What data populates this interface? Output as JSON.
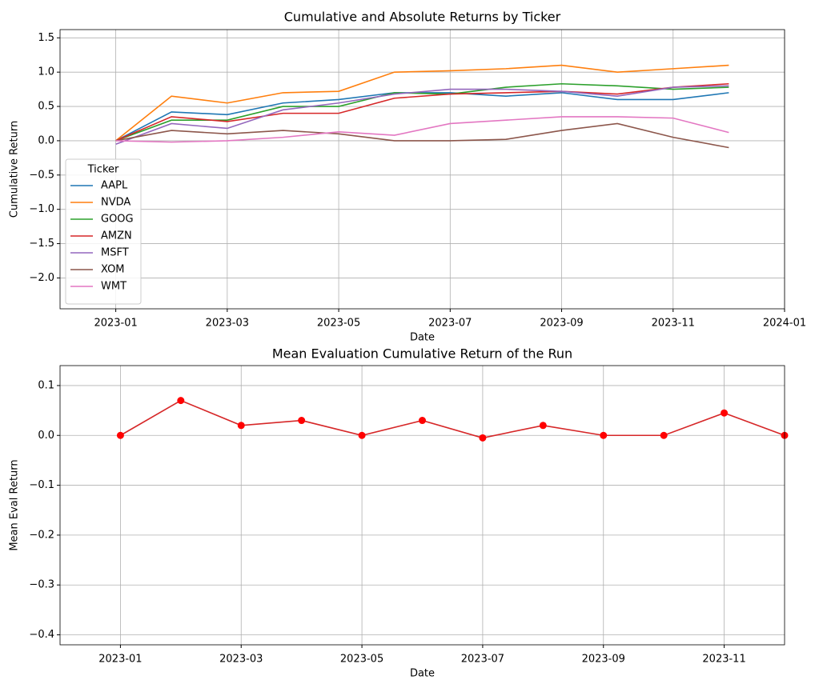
{
  "chart_data": [
    {
      "type": "line",
      "title": "Cumulative and Absolute Returns by Ticker",
      "xlabel": "Date",
      "ylabel": "Cumulative Return",
      "x": [
        "2023-01",
        "2023-02",
        "2023-03",
        "2023-04",
        "2023-05",
        "2023-06",
        "2023-07",
        "2023-08",
        "2023-09",
        "2023-10",
        "2023-11",
        "2023-12"
      ],
      "series": [
        {
          "name": "AAPL",
          "color": "#1f77b4",
          "values": [
            0.0,
            0.42,
            0.38,
            0.55,
            0.6,
            0.7,
            0.7,
            0.65,
            0.7,
            0.6,
            0.6,
            0.7
          ]
        },
        {
          "name": "NVDA",
          "color": "#ff7f0e",
          "values": [
            0.0,
            0.65,
            0.55,
            0.7,
            0.72,
            1.0,
            1.02,
            1.05,
            1.1,
            1.0,
            1.05,
            1.1
          ]
        },
        {
          "name": "GOOG",
          "color": "#2ca02c",
          "values": [
            0.0,
            0.3,
            0.3,
            0.5,
            0.5,
            0.7,
            0.68,
            0.78,
            0.83,
            0.8,
            0.75,
            0.78
          ]
        },
        {
          "name": "AMZN",
          "color": "#d62728",
          "values": [
            0.0,
            0.35,
            0.28,
            0.4,
            0.4,
            0.62,
            0.68,
            0.7,
            0.72,
            0.68,
            0.78,
            0.83
          ]
        },
        {
          "name": "MSFT",
          "color": "#9467bd",
          "values": [
            -0.05,
            0.25,
            0.18,
            0.45,
            0.55,
            0.68,
            0.75,
            0.75,
            0.72,
            0.65,
            0.78,
            0.8
          ]
        },
        {
          "name": "XOM",
          "color": "#8c564b",
          "values": [
            0.0,
            0.15,
            0.1,
            0.15,
            0.1,
            0.0,
            0.0,
            0.02,
            0.15,
            0.25,
            0.05,
            -0.1
          ]
        },
        {
          "name": "WMT",
          "color": "#e377c2",
          "values": [
            0.0,
            -0.02,
            0.0,
            0.05,
            0.13,
            0.08,
            0.25,
            0.3,
            0.35,
            0.35,
            0.33,
            0.12
          ]
        }
      ],
      "legend_title": "Ticker",
      "legend": "lower left",
      "grid": true,
      "xlim": [
        "2022-12",
        "2024-01"
      ],
      "xticks": [
        "2023-01",
        "2023-03",
        "2023-05",
        "2023-07",
        "2023-09",
        "2023-11",
        "2024-01"
      ],
      "ylim": [
        -2.45,
        1.62
      ],
      "yticks": [
        {
          "value": -2.0,
          "label": "−2.0"
        },
        {
          "value": -1.5,
          "label": "−1.5"
        },
        {
          "value": -1.0,
          "label": "−1.0"
        },
        {
          "value": -0.5,
          "label": "−0.5"
        },
        {
          "value": 0.0,
          "label": "0.0"
        },
        {
          "value": 0.5,
          "label": "0.5"
        },
        {
          "value": 1.0,
          "label": "1.0"
        },
        {
          "value": 1.5,
          "label": "1.5"
        }
      ]
    },
    {
      "type": "line",
      "title": "Mean Evaluation Cumulative Return of the Run",
      "xlabel": "Date",
      "ylabel": "Mean Eval Return",
      "x": [
        "2023-01",
        "2023-02",
        "2023-03",
        "2023-04",
        "2023-05",
        "2023-06",
        "2023-07",
        "2023-08",
        "2023-09",
        "2023-10",
        "2023-11",
        "2023-12"
      ],
      "series": [
        {
          "color": "#d62728",
          "marker_color": "#ff0000",
          "values": [
            0.0,
            0.07,
            0.02,
            0.03,
            0.0,
            0.03,
            -0.005,
            0.02,
            0.0,
            0.0,
            0.045,
            0.0
          ]
        }
      ],
      "grid": true,
      "xlim": [
        "2022-12",
        "2023-12"
      ],
      "xticks": [
        "2023-01",
        "2023-03",
        "2023-05",
        "2023-07",
        "2023-09",
        "2023-11"
      ],
      "ylim": [
        -0.42,
        0.14
      ],
      "yticks": [
        {
          "value": -0.4,
          "label": "−0.4"
        },
        {
          "value": -0.3,
          "label": "−0.3"
        },
        {
          "value": -0.2,
          "label": "−0.2"
        },
        {
          "value": -0.1,
          "label": "−0.1"
        },
        {
          "value": 0.0,
          "label": "0.0"
        },
        {
          "value": 0.1,
          "label": "0.1"
        }
      ]
    }
  ]
}
